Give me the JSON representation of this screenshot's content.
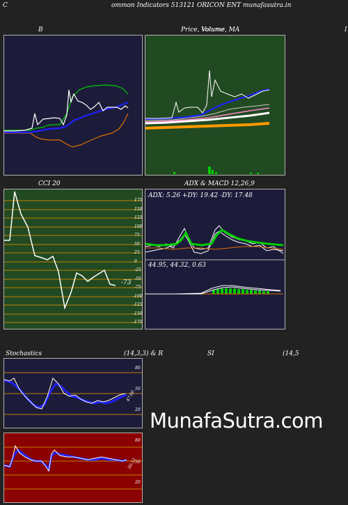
{
  "header": {
    "left_char": "C",
    "title": "ommon  Indicators 513121 ORICON  ENT munafasutra.in"
  },
  "panels": {
    "bollinger": {
      "title": "B"
    },
    "price": {
      "title": "Price,  Volume,  MA",
      "overlay": "Volume"
    },
    "right_stub": "I",
    "cci": {
      "title": "CCI 20",
      "ticks": [
        "175",
        "150",
        "125",
        "100",
        "75",
        "50",
        "25",
        "0",
        "-25",
        "-50",
        "-75",
        "-100",
        "-125",
        "-150",
        "-175"
      ],
      "value_label": "-73"
    },
    "adx": {
      "title": "ADX  & MACD 12,26,9",
      "values_line": "ADX: 5.26  +DY: 19.42  -DY: 17.48",
      "macd_line": "44.95,  44.32,  0.63"
    },
    "stochastics": {
      "title_left": "Stochastics",
      "title_mid": "(14,3,3) & R",
      "ticks": [
        "80",
        "50",
        "20"
      ],
      "value_label": "47.60"
    },
    "rsi": {
      "title_left": "SI",
      "title_right": "(14,5",
      "ticks": [
        "80",
        "50",
        "20"
      ],
      "value_label": "50.52"
    }
  },
  "watermark": "MunafaSutra.com",
  "colors": {
    "background": "#222222",
    "dark_panel": "#1c1c3a",
    "green_panel": "#224a22",
    "red_panel": "#8b0000",
    "line_white": "#ffffff",
    "line_blue": "#2020ff",
    "line_green": "#00cc00",
    "line_orange": "#e07000"
  }
}
